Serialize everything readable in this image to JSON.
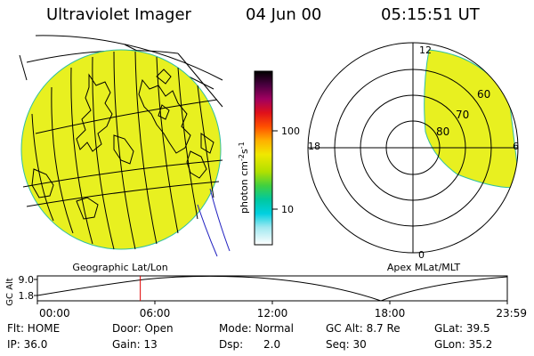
{
  "header": {
    "instrument": "Ultraviolet Imager",
    "date": "04 Jun 00",
    "time": "05:15:51 UT"
  },
  "map_panel": {
    "caption": "Geographic Lat/Lon",
    "disk_color": "#e8f020",
    "coast_color": "#000000"
  },
  "colorbar": {
    "unit_label": "photon cm",
    "unit_exp1": "-2",
    "unit_mid": "s",
    "unit_exp2": "-1",
    "ticks": [
      "100",
      "10"
    ],
    "colors": [
      "#000000",
      "#2b0030",
      "#6a0050",
      "#a00060",
      "#d0002a",
      "#f03010",
      "#ff8a00",
      "#ffc800",
      "#e8f000",
      "#a0e000",
      "#40d040",
      "#00c8a0",
      "#00d0e0",
      "#80e8f0",
      "#d8f0f4",
      "#ffffff"
    ]
  },
  "polar_panel": {
    "caption": "Apex MLat/MLT",
    "mlt_labels": {
      "top": "12",
      "left": "18",
      "right": "6",
      "bottom": "0"
    },
    "lat_labels": [
      "60",
      "70",
      "80"
    ],
    "fill_color": "#e8f020"
  },
  "altitude_plot": {
    "ylabel": "GC Alt",
    "yticks": [
      "9.0",
      "1.8"
    ],
    "xticks": [
      "00:00",
      "06:00",
      "12:00",
      "18:00",
      "23:59"
    ],
    "marker_time": "05:15:51",
    "marker_color": "#e00000",
    "marker_fraction": 0.219
  },
  "info": {
    "row1": {
      "flt": "Flt: HOME",
      "door": "Door: Open",
      "mode": "Mode: Normal",
      "gcalt": "GC Alt: 8.7 Re",
      "glat": "GLat: 39.5"
    },
    "row2": {
      "ip": "IP: 36.0",
      "gain": "Gain: 13",
      "dsp": "Dsp:      2.0",
      "seq": "Seq: 30",
      "glon": "GLon: 35.2"
    }
  }
}
